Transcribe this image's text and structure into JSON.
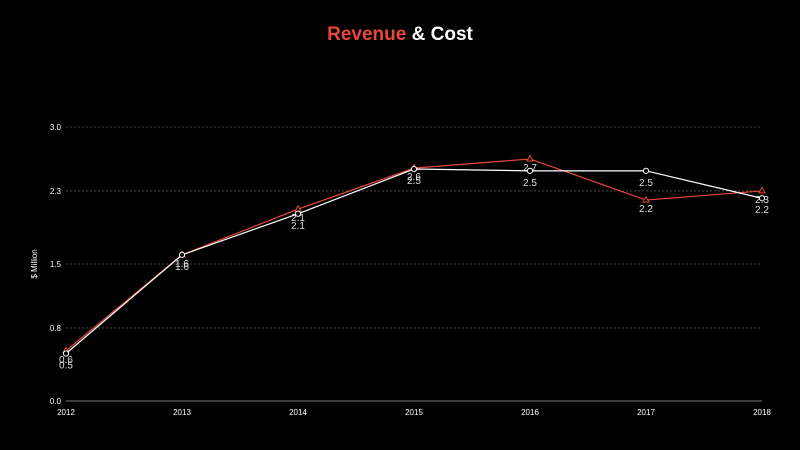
{
  "chart_data": {
    "type": "line",
    "title": "Revenue & Cost",
    "title_parts": [
      "Revenue",
      "&",
      "Cost"
    ],
    "ylabel": "$ Million",
    "xlabel": "",
    "x": [
      "2012",
      "2013",
      "2014",
      "2015",
      "2016",
      "2017",
      "2018"
    ],
    "yticks": [
      "0.0",
      "0.8",
      "1.5",
      "2.3",
      "3.0"
    ],
    "ylim": [
      0,
      3.0
    ],
    "grid": true,
    "series": [
      {
        "name": "",
        "color": "#e8483c",
        "marker": "triangle",
        "values": [
          0.55,
          1.6,
          2.1,
          2.55,
          2.65,
          2.2,
          2.3
        ],
        "labels": [
          "0.6",
          "1.6",
          "2.1",
          "2.6",
          "2.7",
          "2.2",
          "2.3"
        ]
      },
      {
        "name": "",
        "color": "#ffffff",
        "marker": "circle",
        "values": [
          0.52,
          1.6,
          2.05,
          2.54,
          2.52,
          2.52,
          2.22
        ],
        "labels": [
          "0.5",
          "1.6",
          "2.1",
          "2.5",
          "2.5",
          "2.5",
          "2.2"
        ]
      }
    ]
  }
}
